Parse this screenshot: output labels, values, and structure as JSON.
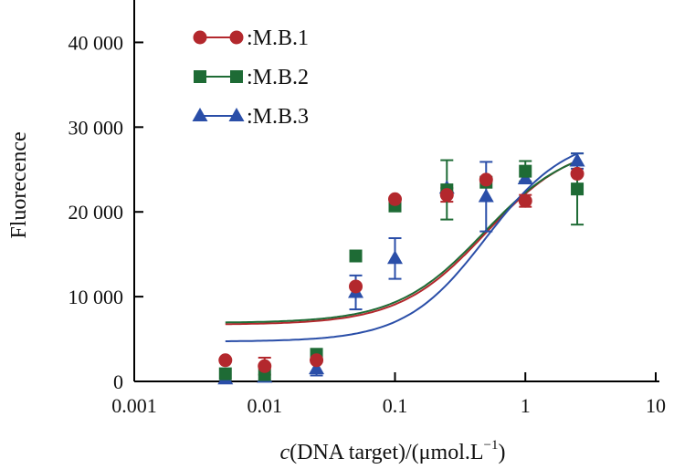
{
  "chart_data": {
    "type": "scatter",
    "xlabel_italic": "c",
    "xlabel_main": "(DNA target)/(μmol.L",
    "xlabel_sup": "−1",
    "xlabel_close": ")",
    "ylabel": "Fluorecence",
    "xscale": "log",
    "xlim": [
      0.001,
      10
    ],
    "ylim": [
      0,
      45000
    ],
    "x_ticks": [
      0.001,
      0.01,
      0.1,
      1,
      10
    ],
    "x_tick_labels": [
      "0.001",
      "0.01",
      "0.1",
      "1",
      "10"
    ],
    "y_ticks": [
      0,
      10000,
      20000,
      30000,
      40000
    ],
    "y_tick_labels": [
      "0",
      "10 000",
      "20 000",
      "30 000",
      "40 000"
    ],
    "grid": false,
    "legend_position": "top-left",
    "series": [
      {
        "name": ":M.B.1",
        "color": "#b3282d",
        "marker": "circle",
        "x": [
          0.005,
          0.01,
          0.025,
          0.05,
          0.1,
          0.25,
          0.5,
          1,
          2.5
        ],
        "y": [
          2500,
          1800,
          2500,
          11200,
          21500,
          22000,
          23800,
          21300,
          24500
        ],
        "err": [
          0,
          1000,
          0,
          0,
          0,
          800,
          0,
          700,
          0
        ],
        "fit": {
          "bottom": 6700,
          "top": 28400,
          "ec50": 0.5,
          "hill": 1.3
        }
      },
      {
        "name": ":M.B.2",
        "color": "#1e6b35",
        "marker": "square",
        "x": [
          0.005,
          0.01,
          0.025,
          0.05,
          0.1,
          0.25,
          0.5,
          1,
          2.5
        ],
        "y": [
          900,
          800,
          3200,
          14800,
          20700,
          22600,
          23500,
          24800,
          22700
        ],
        "err": [
          0,
          0,
          0,
          0,
          0,
          3500,
          0,
          1200,
          4200
        ],
        "fit": {
          "bottom": 6900,
          "top": 28200,
          "ec50": 0.48,
          "hill": 1.3
        }
      },
      {
        "name": ":M.B.3",
        "color": "#2a4ea8",
        "marker": "triangle",
        "x": [
          0.005,
          0.01,
          0.025,
          0.05,
          0.1,
          0.25,
          0.5,
          1,
          2.5
        ],
        "y": [
          300,
          500,
          1500,
          10500,
          14500,
          22800,
          21800,
          23900,
          26000
        ],
        "err": [
          0,
          0,
          800,
          2000,
          2400,
          0,
          4100,
          0,
          900
        ],
        "fit": {
          "bottom": 4700,
          "top": 29200,
          "ec50": 0.5,
          "hill": 1.4
        }
      }
    ]
  }
}
